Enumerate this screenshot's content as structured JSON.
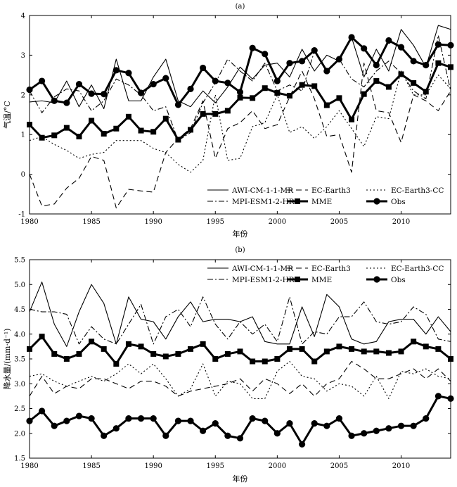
{
  "chart_data": [
    {
      "type": "line",
      "panel_label": "(a)",
      "xlabel": "年份",
      "ylabel": "气温/°C",
      "xlim": [
        1980,
        2014
      ],
      "ylim": [
        -1,
        4
      ],
      "xticks": [
        1980,
        1985,
        1990,
        1995,
        2000,
        2005,
        2010
      ],
      "yticks": [
        "4",
        "3",
        "2",
        "1",
        "0",
        "-1"
      ],
      "legend_placement": "bottom-right",
      "x": [
        1980,
        1981,
        1982,
        1983,
        1984,
        1985,
        1986,
        1987,
        1988,
        1989,
        1990,
        1991,
        1992,
        1993,
        1994,
        1995,
        1996,
        1997,
        1998,
        1999,
        2000,
        2001,
        2002,
        2003,
        2004,
        2005,
        2006,
        2007,
        2008,
        2009,
        2010,
        2011,
        2012,
        2013,
        2014
      ],
      "series": [
        {
          "name": "AWI-CM-1-1-MR",
          "style": "solid",
          "values": [
            1.82,
            1.85,
            1.8,
            2.35,
            1.7,
            2.25,
            1.65,
            2.9,
            1.85,
            1.85,
            2.45,
            2.9,
            1.85,
            1.7,
            2.1,
            1.8,
            2.2,
            2.7,
            2.4,
            2.75,
            2.8,
            2.45,
            3.15,
            2.6,
            3.0,
            2.85,
            3.45,
            2.45,
            3.15,
            2.6,
            3.65,
            3.25,
            2.7,
            3.75,
            3.65
          ]
        },
        {
          "name": "EC-Earth3",
          "style": "dash",
          "values": [
            0.0,
            -0.8,
            -0.75,
            -0.35,
            -0.1,
            0.45,
            0.35,
            -0.85,
            -0.38,
            -0.42,
            -0.45,
            0.55,
            0.9,
            1.15,
            1.85,
            0.4,
            1.15,
            1.3,
            1.6,
            1.15,
            1.25,
            1.95,
            2.6,
            1.9,
            0.95,
            1.0,
            0.05,
            2.8,
            1.6,
            1.55,
            0.8,
            2.0,
            1.85,
            1.6,
            2.1
          ]
        },
        {
          "name": "EC-Earth3-CC",
          "style": "dot",
          "values": [
            0.85,
            0.95,
            0.75,
            0.6,
            0.4,
            0.5,
            0.55,
            0.85,
            0.85,
            0.85,
            0.65,
            0.55,
            0.25,
            0.05,
            0.35,
            2.0,
            0.35,
            0.4,
            1.2,
            1.3,
            2.0,
            1.05,
            1.2,
            0.9,
            1.2,
            1.6,
            1.15,
            0.7,
            1.45,
            1.4,
            2.6,
            2.0,
            2.0,
            2.5,
            2.15
          ]
        },
        {
          "name": "MPI-ESM1-2-HR",
          "style": "dashdot",
          "values": [
            2.1,
            1.55,
            1.95,
            2.15,
            2.1,
            1.6,
            1.85,
            2.4,
            2.25,
            2.0,
            1.6,
            1.7,
            0.85,
            1.05,
            1.8,
            2.3,
            2.9,
            2.6,
            2.35,
            2.8,
            2.1,
            2.25,
            2.1,
            3.1,
            2.6,
            2.9,
            2.4,
            2.2,
            2.6,
            2.85,
            2.55,
            2.1,
            1.9,
            3.5,
            2.1
          ]
        },
        {
          "name": "MME",
          "style": "solid-square",
          "values": [
            1.25,
            0.92,
            0.98,
            1.17,
            0.95,
            1.35,
            1.02,
            1.15,
            1.45,
            1.1,
            1.07,
            1.4,
            0.87,
            1.12,
            1.52,
            1.52,
            1.6,
            1.93,
            1.92,
            2.17,
            2.05,
            1.98,
            2.25,
            2.22,
            1.74,
            1.92,
            1.38,
            2.02,
            2.35,
            2.2,
            2.52,
            2.3,
            2.08,
            2.8,
            2.7
          ]
        },
        {
          "name": "Obs",
          "style": "solid-circle",
          "values": [
            2.13,
            2.35,
            1.85,
            1.8,
            2.27,
            2.03,
            2.02,
            2.62,
            2.55,
            2.05,
            2.27,
            2.42,
            1.75,
            2.15,
            2.68,
            2.35,
            2.3,
            2.07,
            3.18,
            3.03,
            2.35,
            2.8,
            2.85,
            3.12,
            2.6,
            2.9,
            3.45,
            3.17,
            2.75,
            3.37,
            3.2,
            2.85,
            2.75,
            3.27,
            3.25
          ]
        }
      ]
    },
    {
      "type": "line",
      "panel_label": "(b)",
      "xlabel": "年份",
      "ylabel": "降水量/(mm·d⁻¹)",
      "xlim": [
        1980,
        2014
      ],
      "ylim": [
        1.5,
        5.5
      ],
      "xticks": [
        1980,
        1985,
        1990,
        1995,
        2000,
        2005,
        2010
      ],
      "yticks": [
        "5.5",
        "5.0",
        "4.5",
        "4.0",
        "3.5",
        "3.0",
        "2.5",
        "2.0",
        "1.5"
      ],
      "legend_placement": "top-right",
      "x": [
        1980,
        1981,
        1982,
        1983,
        1984,
        1985,
        1986,
        1987,
        1988,
        1989,
        1990,
        1991,
        1992,
        1993,
        1994,
        1995,
        1996,
        1997,
        1998,
        1999,
        2000,
        2001,
        2002,
        2003,
        2004,
        2005,
        2006,
        2007,
        2008,
        2009,
        2010,
        2011,
        2012,
        2013,
        2014
      ],
      "series": [
        {
          "name": "AWI-CM-1-1-MR",
          "style": "solid",
          "values": [
            4.45,
            5.05,
            4.2,
            3.75,
            4.45,
            5.0,
            4.62,
            3.8,
            4.75,
            4.3,
            4.25,
            3.9,
            4.35,
            4.65,
            4.25,
            4.3,
            4.3,
            4.25,
            4.35,
            3.85,
            3.8,
            3.8,
            4.55,
            3.95,
            4.8,
            4.55,
            3.9,
            3.8,
            3.85,
            4.25,
            4.3,
            4.3,
            4.0,
            4.35,
            4.05
          ]
        },
        {
          "name": "EC-Earth3",
          "style": "dash",
          "values": [
            2.75,
            3.15,
            2.8,
            2.95,
            2.9,
            3.1,
            3.1,
            3.0,
            2.9,
            3.05,
            3.05,
            2.95,
            2.75,
            2.85,
            2.9,
            2.95,
            3.0,
            3.1,
            2.85,
            3.1,
            3.0,
            2.8,
            3.0,
            2.75,
            3.0,
            3.1,
            3.45,
            3.3,
            3.1,
            3.1,
            3.2,
            3.3,
            3.1,
            3.3,
            3.05
          ]
        },
        {
          "name": "EC-Earth3-CC",
          "style": "dot",
          "values": [
            3.15,
            3.2,
            3.05,
            2.95,
            3.05,
            3.15,
            3.05,
            3.2,
            3.4,
            3.2,
            3.4,
            3.1,
            2.75,
            2.9,
            3.4,
            2.75,
            3.05,
            3.0,
            2.7,
            2.7,
            3.25,
            3.45,
            3.15,
            3.1,
            2.85,
            3.0,
            2.95,
            2.75,
            3.15,
            2.7,
            3.25,
            3.2,
            3.3,
            3.15,
            3.1
          ]
        },
        {
          "name": "MPI-ESM1-2-HR",
          "style": "dashdot",
          "values": [
            4.5,
            4.45,
            4.45,
            4.4,
            3.8,
            4.15,
            3.9,
            3.8,
            4.2,
            4.6,
            3.8,
            4.35,
            4.5,
            4.15,
            4.75,
            4.2,
            3.9,
            4.25,
            4.0,
            4.2,
            3.85,
            4.75,
            3.8,
            4.05,
            4.0,
            4.35,
            4.35,
            4.65,
            4.25,
            4.2,
            4.25,
            4.55,
            4.4,
            3.9,
            3.85
          ]
        },
        {
          "name": "MME",
          "style": "solid-square",
          "values": [
            3.7,
            3.95,
            3.6,
            3.5,
            3.6,
            3.85,
            3.7,
            3.4,
            3.8,
            3.75,
            3.6,
            3.55,
            3.6,
            3.7,
            3.8,
            3.5,
            3.6,
            3.65,
            3.45,
            3.45,
            3.5,
            3.7,
            3.7,
            3.45,
            3.65,
            3.75,
            3.7,
            3.65,
            3.65,
            3.62,
            3.65,
            3.85,
            3.75,
            3.7,
            3.5
          ]
        },
        {
          "name": "Obs",
          "style": "solid-circle",
          "values": [
            2.25,
            2.45,
            2.15,
            2.25,
            2.35,
            2.3,
            1.95,
            2.1,
            2.3,
            2.3,
            2.3,
            1.95,
            2.25,
            2.25,
            2.05,
            2.2,
            1.95,
            1.9,
            2.3,
            2.25,
            2.0,
            2.2,
            1.78,
            2.2,
            2.15,
            2.3,
            1.95,
            2.0,
            2.05,
            2.1,
            2.15,
            2.15,
            2.3,
            2.75,
            2.7
          ]
        }
      ]
    }
  ]
}
